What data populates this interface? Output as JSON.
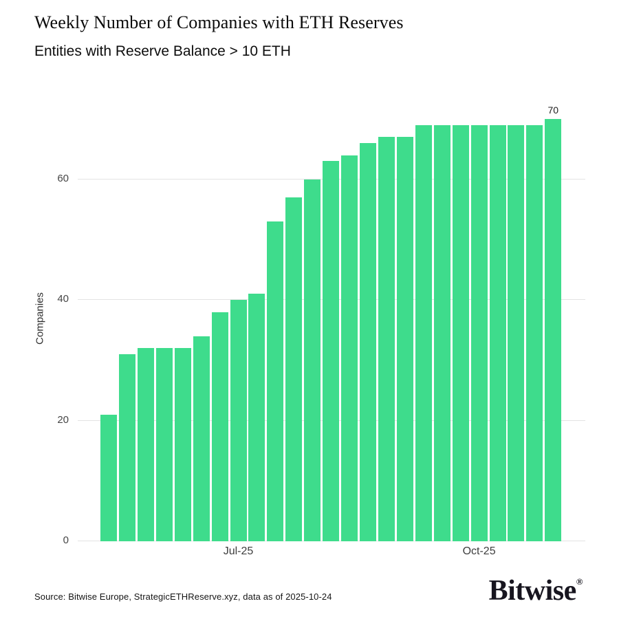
{
  "header": {
    "title": "Weekly Number of Companies with ETH Reserves",
    "subtitle": "Entities with Reserve Balance > 10 ETH"
  },
  "chart_data": {
    "type": "bar",
    "title": "Weekly Number of Companies with ETH Reserves",
    "subtitle": "Entities with Reserve Balance > 10 ETH",
    "xlabel": "",
    "ylabel": "Companies",
    "ylim": [
      0,
      72
    ],
    "yticks": [
      0,
      20,
      40,
      60
    ],
    "grid": "horizontal",
    "legend": "none",
    "bar_color": "#3edc8c",
    "gridline_color": "#e3e3e3",
    "x_unit": "week",
    "n_bars": 25,
    "values": [
      21,
      31,
      32,
      32,
      32,
      34,
      38,
      40,
      41,
      53,
      57,
      60,
      63,
      64,
      66,
      67,
      67,
      69,
      69,
      69,
      69,
      69,
      69,
      69,
      70
    ],
    "xticks": [
      {
        "bar_index": 8,
        "label": "Jul-25"
      },
      {
        "bar_index": 21,
        "label": "Oct-25"
      }
    ],
    "last_value_label": "70"
  },
  "footer": {
    "source": "Source: Bitwise Europe, StrategicETHReserve.xyz, data as of 2025-10-24",
    "logo_text": "Bitwise",
    "logo_registered": "®"
  }
}
